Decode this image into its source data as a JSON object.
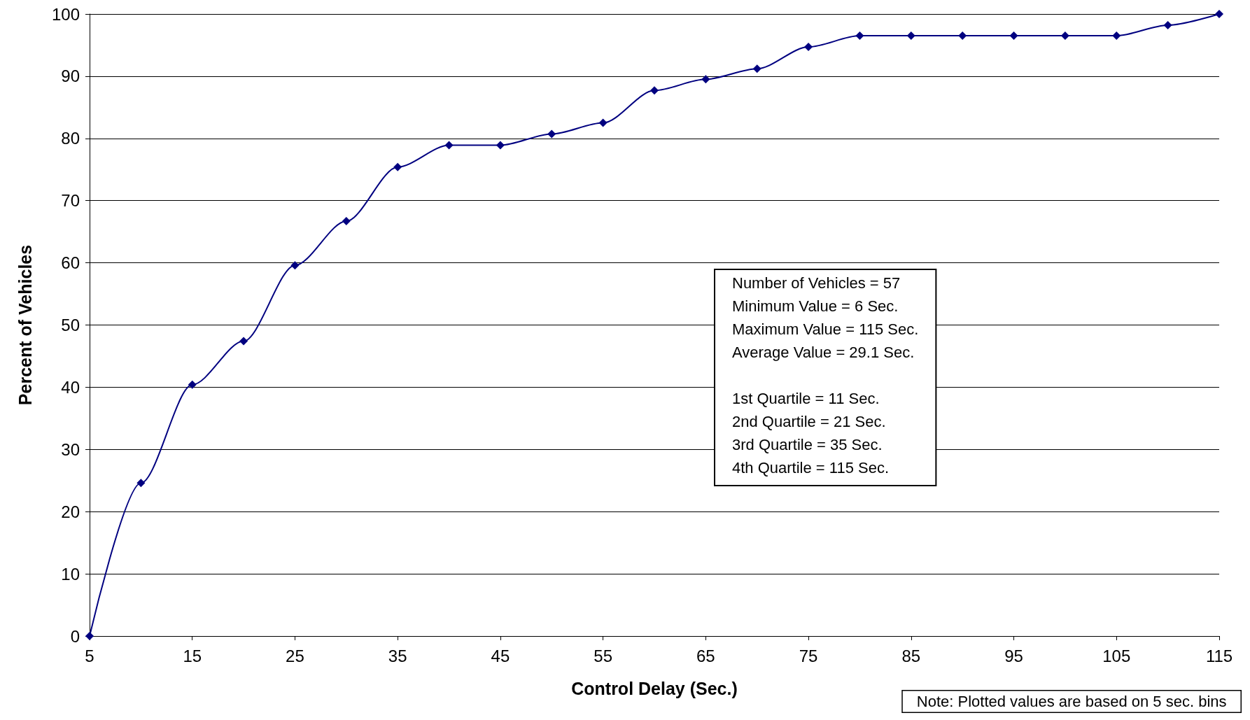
{
  "chart_data": {
    "type": "line",
    "xlabel": "Control Delay (Sec.)",
    "ylabel": "Percent of Vehicles",
    "x": [
      5,
      10,
      15,
      20,
      25,
      30,
      35,
      40,
      45,
      50,
      55,
      60,
      65,
      70,
      75,
      80,
      85,
      90,
      95,
      100,
      105,
      110,
      115
    ],
    "series": [
      {
        "color": "#000080",
        "values": [
          0,
          24.6,
          40.4,
          47.4,
          59.6,
          66.7,
          75.4,
          78.9,
          78.9,
          80.7,
          82.5,
          87.7,
          89.5,
          91.2,
          94.7,
          96.5,
          96.5,
          96.5,
          96.5,
          96.5,
          96.5,
          98.2,
          100
        ]
      }
    ],
    "xlim": [
      5,
      115
    ],
    "xticks": [
      5,
      15,
      25,
      35,
      45,
      55,
      65,
      75,
      85,
      95,
      105,
      115
    ],
    "ylim": [
      0,
      100
    ],
    "yticks": [
      0,
      10,
      20,
      30,
      40,
      50,
      60,
      70,
      80,
      90,
      100
    ],
    "grid": "y",
    "marker": "diamond",
    "line_style": "solid",
    "annotations": [
      "Number of Vehicles = 57\nMinimum Value = 6 Sec.\nMaximum Value = 115 Sec.\nAverage Value = 29.1 Sec.\n\n1st Quartile = 11 Sec.\n2nd Quartile = 21 Sec.\n3rd Quartile = 35 Sec.\n4th Quartile = 115 Sec.",
      "Note: Plotted values are based on 5 sec. bins"
    ]
  }
}
